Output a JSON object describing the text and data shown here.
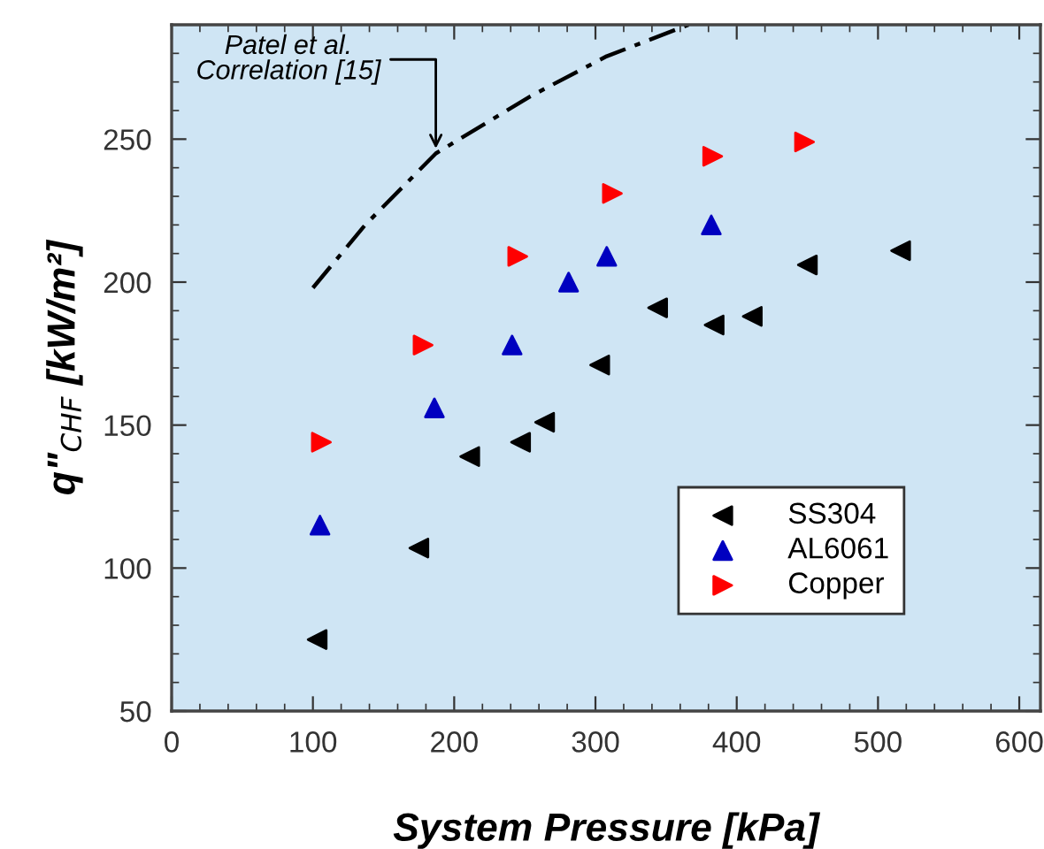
{
  "chart_data": {
    "type": "scatter",
    "xlabel": "System Pressure [kPa]",
    "ylabel": "q\"$_{CHF}$ [kW/m²]",
    "xlim": [
      0,
      615
    ],
    "ylim": [
      50,
      290
    ],
    "xticks": [
      0,
      100,
      200,
      300,
      400,
      500,
      600
    ],
    "yticks": [
      50,
      100,
      150,
      200,
      250
    ],
    "grid": false,
    "legend": "bottom right",
    "series": [
      {
        "name": "SS304",
        "color": "#000000",
        "marker": "triangle-left",
        "x": [
          103,
          175,
          211,
          247,
          264,
          303,
          344,
          384,
          411,
          450,
          516
        ],
        "values": [
          75,
          107,
          139,
          144,
          151,
          171,
          191,
          185,
          188,
          206,
          211
        ]
      },
      {
        "name": "AL6061",
        "color": "#0000c0",
        "marker": "triangle",
        "x": [
          105,
          186,
          241,
          281,
          308,
          382
        ],
        "values": [
          115,
          156,
          178,
          200,
          209,
          220
        ]
      },
      {
        "name": "Copper",
        "color": "#ff0000",
        "marker": "triangle-right",
        "x": [
          106,
          178,
          245,
          312,
          383,
          448
        ],
        "values": [
          144,
          178,
          209,
          231,
          244,
          249
        ]
      },
      {
        "type": "line",
        "color": "#000000",
        "line_style": "dashed",
        "marker": "none",
        "x": [
          100,
          137,
          187,
          254,
          308,
          366
        ],
        "values": [
          198,
          220,
          245,
          265,
          279,
          290
        ]
      }
    ],
    "annotations": [
      {
        "text": "Patel et al.\nCorrelation [15]",
        "x": 187,
        "y": 245
      }
    ]
  }
}
